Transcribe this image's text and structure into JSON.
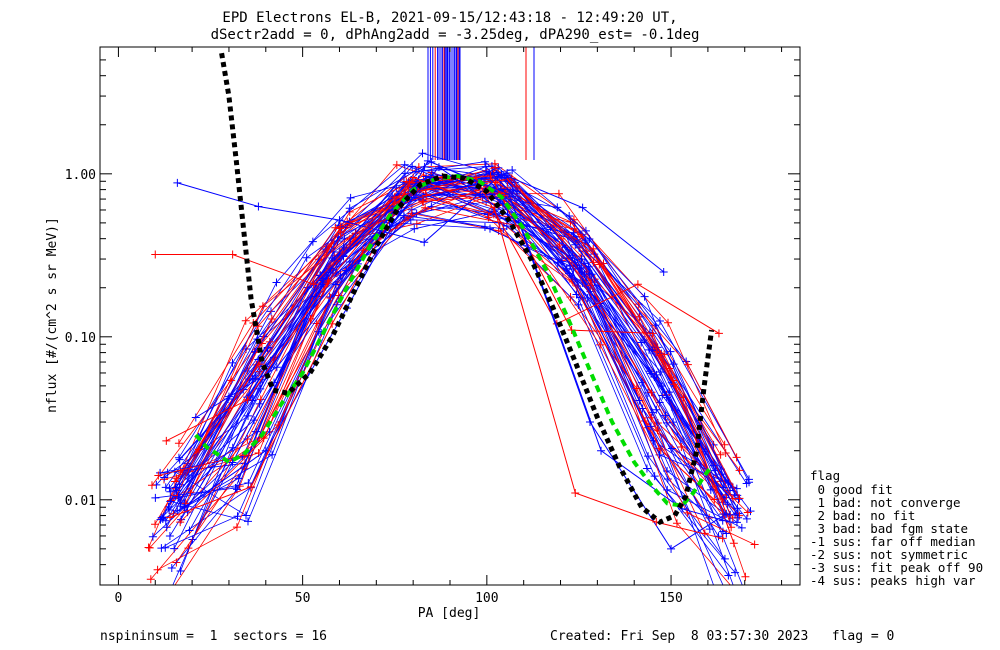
{
  "title_line1": "EPD Electrons EL-B, 2021-09-15/12:43:18 - 12:49:20 UT,",
  "title_line2": "dSectr2add = 0, dPhAng2add = -3.25deg, dPA290_est=  -0.1deg",
  "footer": {
    "left": "nspininsum =  1  sectors = 16",
    "right": "Created: Fri Sep  8 03:57:30 2023   flag = 0"
  },
  "legend": {
    "title": "flag",
    "entries": [
      " 0 good fit",
      " 1 bad: not converge",
      " 2 bad: no fit",
      " 3 bad: bad fgm state",
      "-1 sus: far off median",
      "-2 sus: not symmetric",
      "-3 sus: fit peak off 90",
      "-4 sus: peaks high var"
    ]
  },
  "colors": {
    "blue": "#0000ff",
    "red": "#ff0000",
    "black": "#000000",
    "green": "#00dd00"
  },
  "chart_data": {
    "type": "line",
    "xlabel": "PA [deg]",
    "ylabel": "nflux [#/(cm^2 s sr MeV)]",
    "xlim": [
      -5,
      185
    ],
    "ylim": [
      0.003,
      6
    ],
    "yscale": "log",
    "xticks": [
      0,
      50,
      100,
      150
    ],
    "xtick_labels": [
      "0",
      "50",
      "100",
      "150"
    ],
    "yticks": [
      0.01,
      0.1,
      1.0
    ],
    "ytick_labels": [
      "0.01",
      "0.10",
      "1.00"
    ],
    "series": [
      {
        "color": "blue",
        "x": [
          16,
          38,
          60,
          83,
          104,
          126,
          148
        ],
        "y": [
          0.88,
          0.63,
          0.52,
          0.38,
          1.0,
          0.62,
          0.25
        ]
      },
      {
        "color": "red",
        "x": [
          10,
          31,
          53,
          75,
          97,
          119,
          141,
          163
        ],
        "y": [
          0.32,
          0.32,
          0.21,
          0.72,
          0.95,
          0.12,
          0.21,
          0.105
        ]
      },
      {
        "color": "red",
        "x": [
          13,
          35,
          57,
          79,
          101,
          123,
          145,
          166
        ],
        "y": [
          0.023,
          0.041,
          0.22,
          0.88,
          0.97,
          0.11,
          0.105,
          0.0073
        ]
      },
      {
        "color": "blue",
        "x": [
          21,
          43,
          65,
          87,
          109,
          131,
          153,
          166
        ],
        "y": [
          0.032,
          0.065,
          0.28,
          1.1,
          0.5,
          0.02,
          0.0088,
          0.0073
        ]
      },
      {
        "color": "blue",
        "x": [
          18,
          40,
          62,
          84,
          106,
          128,
          150,
          165
        ],
        "y": [
          0.009,
          0.02,
          0.15,
          1.2,
          0.75,
          0.03,
          0.005,
          0.0082
        ]
      },
      {
        "color": "red",
        "x": [
          14,
          36,
          58,
          80,
          102,
          124,
          146,
          164
        ],
        "y": [
          0.0078,
          0.012,
          0.12,
          0.95,
          0.62,
          0.011,
          0.0073,
          0.0058
        ]
      }
    ],
    "fit_black": {
      "x": [
        28,
        30,
        32,
        34,
        36,
        39,
        42,
        46,
        52,
        58,
        64,
        70,
        76,
        82,
        88,
        94,
        100,
        106,
        112,
        118,
        124,
        130,
        136,
        142,
        147,
        151,
        154,
        157,
        159,
        161
      ],
      "y": [
        5.5,
        3.0,
        1.2,
        0.45,
        0.17,
        0.07,
        0.047,
        0.045,
        0.06,
        0.1,
        0.19,
        0.36,
        0.62,
        0.86,
        0.97,
        0.94,
        0.78,
        0.52,
        0.3,
        0.15,
        0.07,
        0.032,
        0.016,
        0.009,
        0.0073,
        0.008,
        0.0105,
        0.02,
        0.05,
        0.11
      ]
    },
    "fit_green": {
      "x": [
        21,
        24,
        27,
        30,
        34,
        39,
        44,
        50,
        56,
        62,
        68,
        74,
        80,
        86,
        92,
        98,
        104,
        110,
        116,
        122,
        128,
        134,
        140,
        145,
        149,
        153,
        156,
        159,
        161
      ],
      "y": [
        0.025,
        0.021,
        0.019,
        0.017,
        0.019,
        0.025,
        0.038,
        0.06,
        0.11,
        0.2,
        0.35,
        0.57,
        0.8,
        0.93,
        0.97,
        0.9,
        0.72,
        0.46,
        0.26,
        0.13,
        0.062,
        0.03,
        0.017,
        0.012,
        0.0095,
        0.0092,
        0.011,
        0.014,
        0.016
      ]
    }
  }
}
